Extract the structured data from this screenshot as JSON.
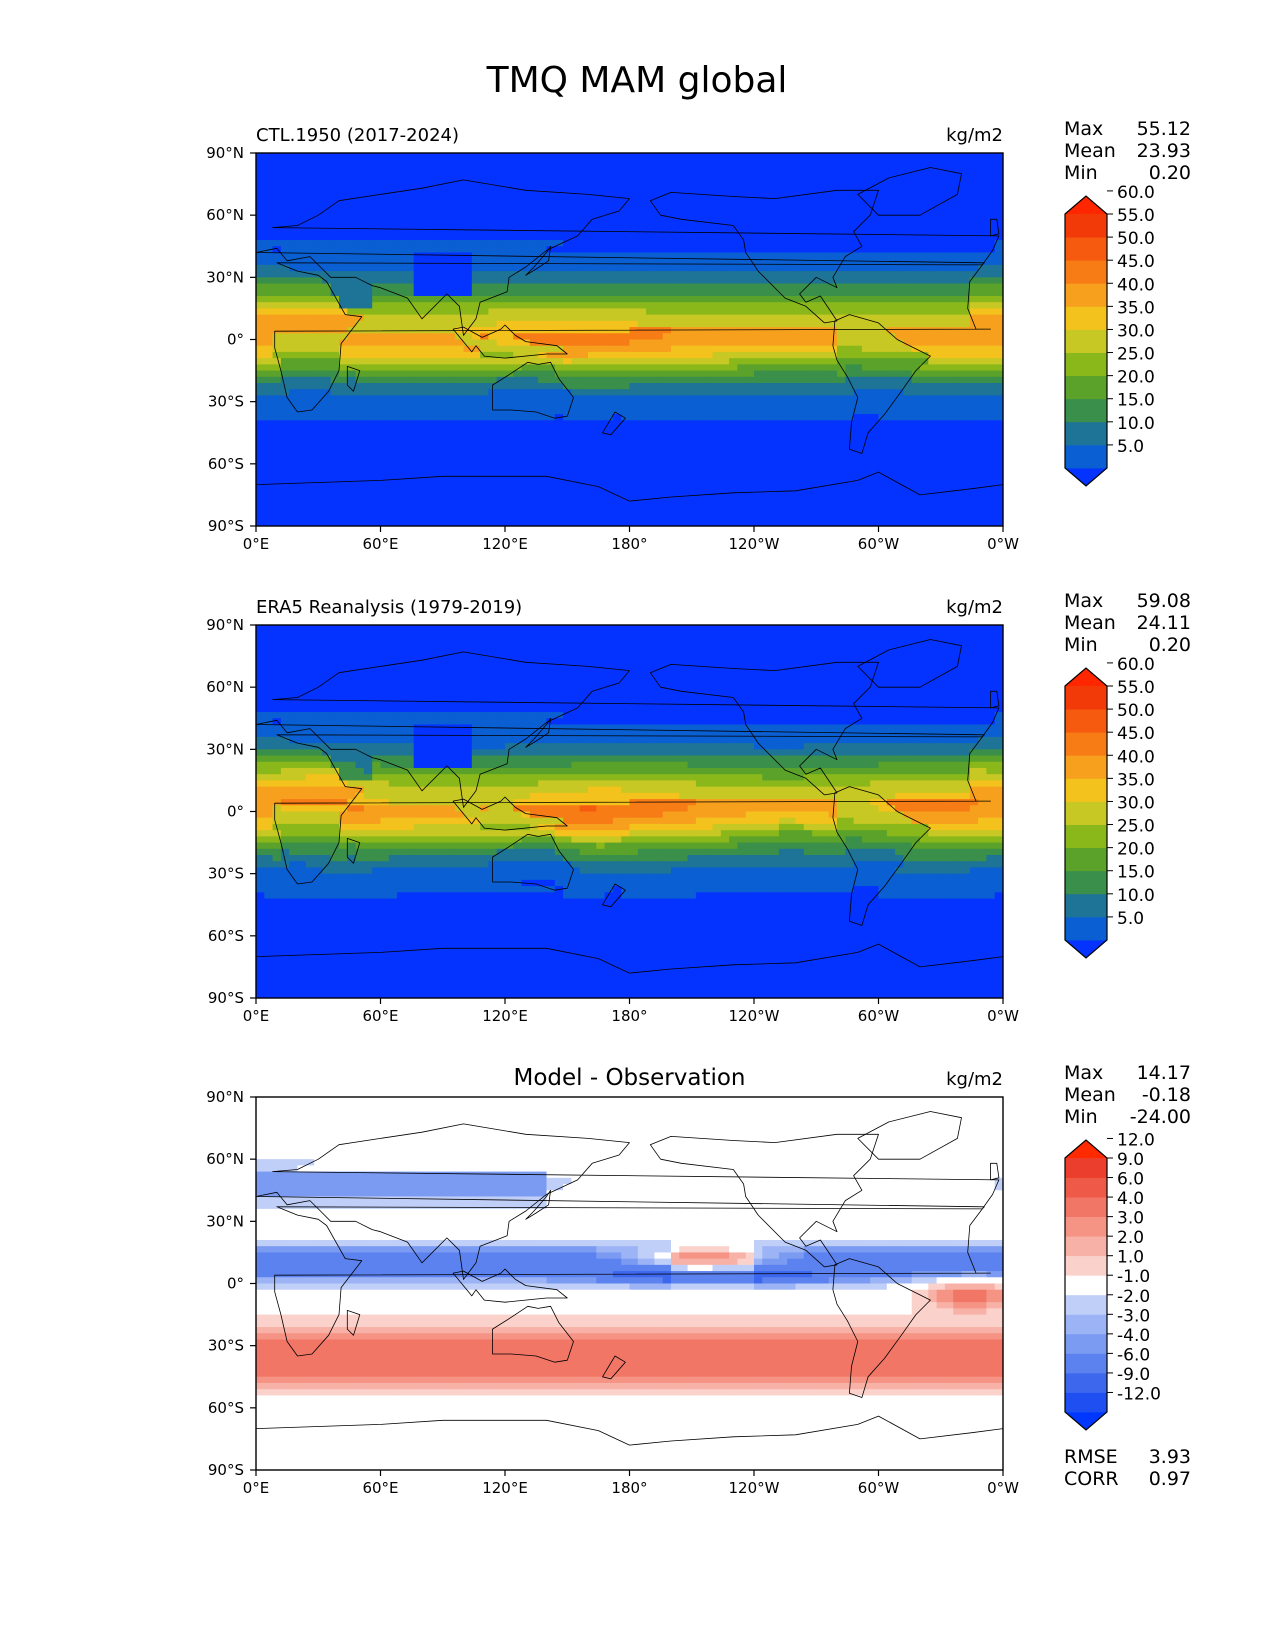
{
  "figure": {
    "title": "TMQ MAM global"
  },
  "chart_data": [
    {
      "type": "heatmap",
      "title": "CTL.1950 (2017-2024)",
      "units": "kg/m2",
      "stats": [
        {
          "label": "Max",
          "value": "55.12"
        },
        {
          "label": "Mean",
          "value": "23.93"
        },
        {
          "label": "Min",
          "value": "0.20"
        }
      ],
      "colorbar": {
        "levels": [
          5.0,
          10.0,
          15.0,
          20.0,
          25.0,
          30.0,
          35.0,
          40.0,
          45.0,
          50.0,
          55.0,
          60.0
        ],
        "labels": [
          "5.0",
          "10.0",
          "15.0",
          "20.0",
          "25.0",
          "30.0",
          "35.0",
          "40.0",
          "45.0",
          "50.0",
          "55.0",
          "60.0"
        ],
        "colors": [
          "#0432ff",
          "#0a5fd2",
          "#1e7496",
          "#3a8f4a",
          "#5aa22a",
          "#8ab81a",
          "#c8c824",
          "#f4c21c",
          "#f7a01e",
          "#f77c16",
          "#f55a0e",
          "#f23a08",
          "#ff2600"
        ],
        "extend": "both"
      },
      "field": {
        "kind": "abs",
        "base": 24.0,
        "zones": []
      }
    },
    {
      "type": "heatmap",
      "title": "ERA5 Reanalysis (1979-2019)",
      "units": "kg/m2",
      "stats": [
        {
          "label": "Max",
          "value": "59.08"
        },
        {
          "label": "Mean",
          "value": "24.11"
        },
        {
          "label": "Min",
          "value": "0.20"
        }
      ],
      "colorbar": {
        "levels": [
          5.0,
          10.0,
          15.0,
          20.0,
          25.0,
          30.0,
          35.0,
          40.0,
          45.0,
          50.0,
          55.0,
          60.0
        ],
        "labels": [
          "5.0",
          "10.0",
          "15.0",
          "20.0",
          "25.0",
          "30.0",
          "35.0",
          "40.0",
          "45.0",
          "50.0",
          "55.0",
          "60.0"
        ],
        "colors": [
          "#0432ff",
          "#0a5fd2",
          "#1e7496",
          "#3a8f4a",
          "#5aa22a",
          "#8ab81a",
          "#c8c824",
          "#f4c21c",
          "#f7a01e",
          "#f77c16",
          "#f55a0e",
          "#f23a08",
          "#ff2600"
        ],
        "extend": "both"
      },
      "field": {
        "kind": "abs",
        "base": 24.0,
        "zones": []
      }
    },
    {
      "type": "heatmap",
      "title": "Model - Observation",
      "units": "kg/m2",
      "stats": [
        {
          "label": "Max",
          "value": "14.17"
        },
        {
          "label": "Mean",
          "value": "-0.18"
        },
        {
          "label": "Min",
          "value": "-24.00"
        }
      ],
      "colorbar": {
        "levels": [
          -12.0,
          -9.0,
          -6.0,
          -4.0,
          -3.0,
          -2.0,
          -1.0,
          1.0,
          2.0,
          3.0,
          4.0,
          6.0,
          9.0,
          12.0
        ],
        "labels": [
          "-12.0",
          "-9.0",
          "-6.0",
          "-4.0",
          "-3.0",
          "-2.0",
          "-1.0",
          "1.0",
          "2.0",
          "3.0",
          "4.0",
          "6.0",
          "9.0",
          "12.0"
        ],
        "colors": [
          "#0037ff",
          "#1f4ff0",
          "#3d68ee",
          "#5c82f0",
          "#7b9bf2",
          "#9cb4f5",
          "#c0cff8",
          "#ffffff",
          "#fbd2cb",
          "#f8b1a6",
          "#f59485",
          "#f27666",
          "#ef5a48",
          "#ec3e2c",
          "#ff2a00"
        ],
        "extend": "both"
      },
      "summary": [
        {
          "label": "RMSE",
          "value": "3.93"
        },
        {
          "label": "CORR",
          "value": "0.97"
        }
      ],
      "field": {
        "kind": "diff",
        "zones": []
      }
    }
  ],
  "axes": {
    "x_ticks": [
      {
        "lon": 0,
        "label": "0°E"
      },
      {
        "lon": 60,
        "label": "60°E"
      },
      {
        "lon": 120,
        "label": "120°E"
      },
      {
        "lon": 180,
        "label": "180°"
      },
      {
        "lon": 240,
        "label": "120°W"
      },
      {
        "lon": 300,
        "label": "60°W"
      },
      {
        "lon": 360,
        "label": "0°W"
      }
    ],
    "y_ticks": [
      {
        "lat": 90,
        "label": "90°N"
      },
      {
        "lat": 60,
        "label": "60°N"
      },
      {
        "lat": 30,
        "label": "30°N"
      },
      {
        "lat": 0,
        "label": "0°"
      },
      {
        "lat": -30,
        "label": "30°S"
      },
      {
        "lat": -60,
        "label": "60°S"
      },
      {
        "lat": -90,
        "label": "90°S"
      }
    ],
    "xlim": [
      0,
      360
    ],
    "ylim": [
      -90,
      90
    ]
  }
}
